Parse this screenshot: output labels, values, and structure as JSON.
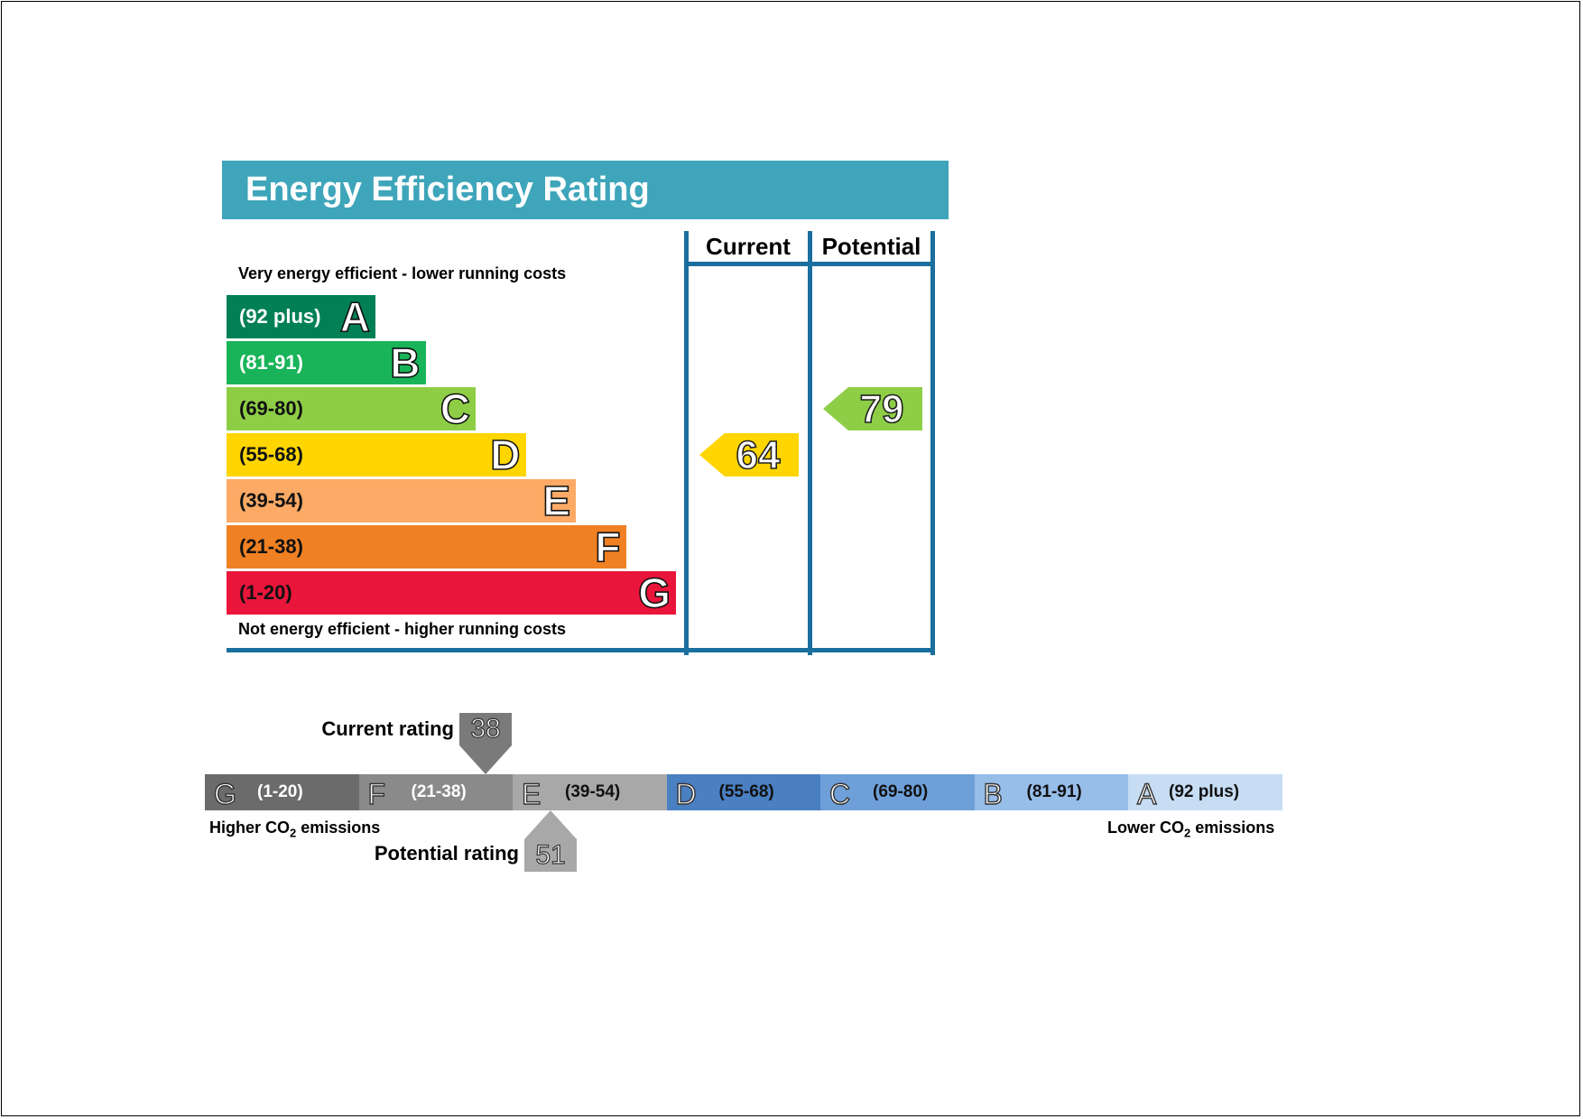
{
  "chart_data": [
    {
      "type": "bar",
      "title": "Energy Efficiency Rating",
      "top_caption": "Very energy efficient - lower running costs",
      "bottom_caption": "Not energy efficient - higher running costs",
      "columns": [
        "Current",
        "Potential"
      ],
      "bands": [
        {
          "letter": "A",
          "range": "(92 plus)",
          "color": "#008054",
          "text_color": "#ffffff"
        },
        {
          "letter": "B",
          "range": "(81-91)",
          "color": "#19b459",
          "text_color": "#ffffff"
        },
        {
          "letter": "C",
          "range": "(69-80)",
          "color": "#8dce46",
          "text_color": "#111111"
        },
        {
          "letter": "D",
          "range": "(55-68)",
          "color": "#ffd500",
          "text_color": "#111111"
        },
        {
          "letter": "E",
          "range": "(39-54)",
          "color": "#fcaa65",
          "text_color": "#111111"
        },
        {
          "letter": "F",
          "range": "(21-38)",
          "color": "#ef8023",
          "text_color": "#111111"
        },
        {
          "letter": "G",
          "range": "(1-20)",
          "color": "#e9153b",
          "text_color": "#111111"
        }
      ],
      "current": {
        "value": 64,
        "band": "D",
        "color": "#ffd500"
      },
      "potential": {
        "value": 79,
        "band": "C",
        "color": "#8dce46"
      }
    },
    {
      "type": "bar",
      "segments": [
        {
          "letter": "G",
          "range": "(1-20)",
          "color": "#6b6b6b",
          "text_color": "#ffffff"
        },
        {
          "letter": "F",
          "range": "(21-38)",
          "color": "#8a8a8a",
          "text_color": "#ffffff"
        },
        {
          "letter": "E",
          "range": "(39-54)",
          "color": "#a8a8a8",
          "text_color": "#111111"
        },
        {
          "letter": "D",
          "range": "(55-68)",
          "color": "#4a7fc1",
          "text_color": "#111111"
        },
        {
          "letter": "C",
          "range": "(69-80)",
          "color": "#6e9fd8",
          "text_color": "#111111"
        },
        {
          "letter": "B",
          "range": "(81-91)",
          "color": "#97bde9",
          "text_color": "#111111"
        },
        {
          "letter": "A",
          "range": "(92 plus)",
          "color": "#c6ddf4",
          "text_color": "#111111"
        }
      ],
      "left_caption_pre": "Higher CO",
      "left_caption_sub": "2",
      "left_caption_post": " emissions",
      "right_caption_pre": "Lower CO",
      "right_caption_sub": "2",
      "right_caption_post": " emissions",
      "current": {
        "label": "Current rating",
        "value": 38,
        "color": "#7a7a7a"
      },
      "potential": {
        "label": "Potential rating",
        "value": 51,
        "color": "#a8a8a8"
      }
    }
  ]
}
